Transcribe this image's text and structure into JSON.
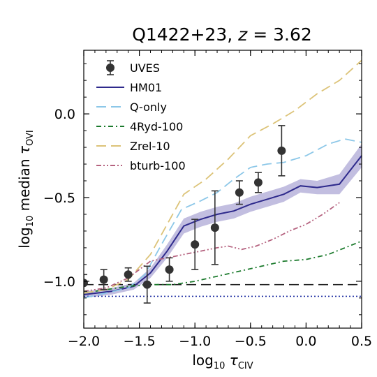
{
  "chart_data": {
    "type": "line",
    "title": "Q1422+23, z = 3.62",
    "title_parts": {
      "main": "Q1422+23,",
      "var": "z",
      "rest": "= 3.62"
    },
    "xlabel": "log10 τCIV",
    "xlabel_parts": {
      "pre": "log",
      "sub": "10",
      "tau": "τ",
      "tausub": "CIV"
    },
    "ylabel": "log10 median τOVI",
    "ylabel_parts": {
      "pre": "log",
      "sub": "10",
      "mid": "median",
      "tau": "τ",
      "tausub": "OVI"
    },
    "xlim": [
      -2.0,
      0.5
    ],
    "ylim": [
      -1.28,
      0.38
    ],
    "xticks": [
      -2.0,
      -1.5,
      -1.0,
      -0.5,
      0.0,
      0.5
    ],
    "xtick_labels": [
      "−2.0",
      "−1.5",
      "−1.0",
      "−0.5",
      "0.0",
      "0.5"
    ],
    "yticks": [
      -1.0,
      -0.5,
      0.0
    ],
    "ytick_labels": [
      "−1.0",
      "−0.5",
      "0.0"
    ],
    "legend_placement": "upper-left",
    "hlines": [
      {
        "y": -1.02,
        "style": "dashed",
        "color": "#222222"
      },
      {
        "y": -1.09,
        "style": "dotted",
        "color": "#1f2fa3"
      }
    ],
    "series": [
      {
        "name": "UVES",
        "kind": "errorbar",
        "color": "#333333",
        "x": [
          -2.0,
          -1.82,
          -1.6,
          -1.43,
          -1.23,
          -1.0,
          -0.82,
          -0.6,
          -0.43,
          -0.22
        ],
        "y": [
          -1.01,
          -0.99,
          -0.96,
          -1.02,
          -0.93,
          -0.78,
          -0.68,
          -0.47,
          -0.41,
          -0.22
        ],
        "yerr": [
          0.05,
          0.06,
          0.04,
          0.11,
          0.07,
          0.15,
          0.22,
          0.07,
          0.06,
          0.15
        ]
      },
      {
        "name": "HM01",
        "kind": "line",
        "style": "solid",
        "color": "#2e2a8c",
        "x": [
          -2.0,
          -1.75,
          -1.55,
          -1.4,
          -1.25,
          -1.1,
          -0.95,
          -0.8,
          -0.65,
          -0.5,
          -0.35,
          -0.2,
          -0.05,
          0.1,
          0.3,
          0.5
        ],
        "y": [
          -1.08,
          -1.06,
          -1.03,
          -0.95,
          -0.82,
          -0.67,
          -0.63,
          -0.6,
          -0.58,
          -0.54,
          -0.51,
          -0.48,
          -0.43,
          -0.44,
          -0.42,
          -0.25
        ],
        "band": [
          0.02,
          0.02,
          0.02,
          0.03,
          0.04,
          0.045,
          0.045,
          0.045,
          0.045,
          0.045,
          0.045,
          0.045,
          0.04,
          0.04,
          0.06,
          0.07
        ],
        "band_color": "#8f89c6"
      },
      {
        "name": "Q-only",
        "kind": "line",
        "style": "dashed",
        "color": "#8cc7e8",
        "x": [
          -2.0,
          -1.8,
          -1.6,
          -1.45,
          -1.3,
          -1.12,
          -0.95,
          -0.8,
          -0.65,
          -0.5,
          -0.35,
          -0.2,
          0.0,
          0.2,
          0.35,
          0.5
        ],
        "y": [
          -1.1,
          -1.07,
          -1.04,
          -0.96,
          -0.78,
          -0.57,
          -0.52,
          -0.47,
          -0.39,
          -0.32,
          -0.3,
          -0.29,
          -0.25,
          -0.18,
          -0.15,
          -0.17
        ]
      },
      {
        "name": "4Ryd-100",
        "kind": "line",
        "style": "dashdot",
        "color": "#1b7a2c",
        "x": [
          -2.0,
          -1.8,
          -1.6,
          -1.4,
          -1.2,
          -1.0,
          -0.8,
          -0.6,
          -0.4,
          -0.2,
          0.0,
          0.2,
          0.35,
          0.5
        ],
        "y": [
          -1.07,
          -1.05,
          -1.03,
          -1.02,
          -1.02,
          -1.0,
          -0.97,
          -0.94,
          -0.91,
          -0.88,
          -0.87,
          -0.84,
          -0.8,
          -0.76
        ]
      },
      {
        "name": "Zrel-10",
        "kind": "line",
        "style": "dashed",
        "color": "#dcc378",
        "x": [
          -2.0,
          -1.8,
          -1.6,
          -1.4,
          -1.25,
          -1.1,
          -0.9,
          -0.7,
          -0.5,
          -0.3,
          -0.1,
          0.1,
          0.3,
          0.5
        ],
        "y": [
          -1.07,
          -1.05,
          -0.99,
          -0.84,
          -0.66,
          -0.48,
          -0.39,
          -0.27,
          -0.13,
          -0.06,
          0.02,
          0.12,
          0.2,
          0.32
        ]
      },
      {
        "name": "bturb-100",
        "kind": "line",
        "style": "dashdotdot",
        "color": "#b5627f",
        "x": [
          -2.0,
          -1.8,
          -1.6,
          -1.4,
          -1.25,
          -1.1,
          -0.95,
          -0.8,
          -0.7,
          -0.58,
          -0.45,
          -0.3,
          -0.15,
          0.0,
          0.15,
          0.3
        ],
        "y": [
          -1.06,
          -1.04,
          -0.98,
          -0.88,
          -0.86,
          -0.84,
          -0.82,
          -0.8,
          -0.79,
          -0.81,
          -0.79,
          -0.75,
          -0.7,
          -0.66,
          -0.6,
          -0.53
        ]
      }
    ]
  }
}
